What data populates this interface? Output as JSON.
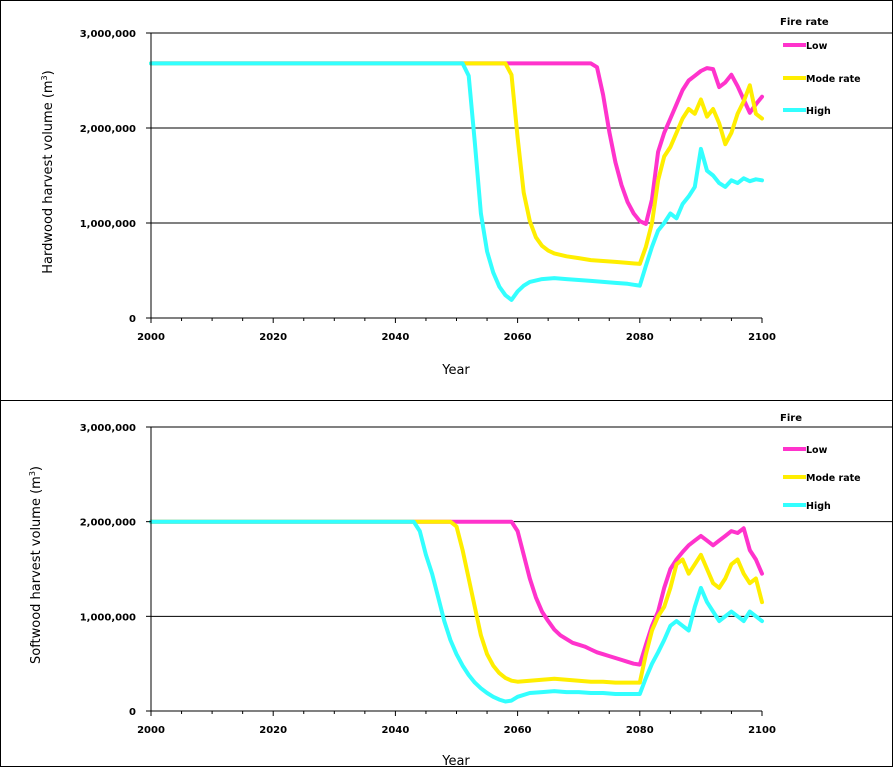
{
  "chart_data": [
    {
      "type": "line",
      "xlabel": "Year",
      "ylabel": "Hardwood harvest volume (m³)",
      "xlim": [
        2000,
        2100
      ],
      "ylim": [
        0,
        3000000
      ],
      "x_ticks": [
        "2000",
        "2020",
        "2040",
        "2060",
        "2080",
        "2100"
      ],
      "y_ticks": [
        "0",
        "1,000,000",
        "2,000,000",
        "3,000,000"
      ],
      "grid": "horizontal",
      "legend_title": "Fire rate",
      "legend_position": "top-right",
      "series": [
        {
          "name": "Low",
          "color": "#ff33cc",
          "points": [
            [
              2000,
              2680000
            ],
            [
              2072,
              2680000
            ],
            [
              2073,
              2640000
            ],
            [
              2074,
              2350000
            ],
            [
              2075,
              1960000
            ],
            [
              2076,
              1640000
            ],
            [
              2077,
              1400000
            ],
            [
              2078,
              1220000
            ],
            [
              2079,
              1100000
            ],
            [
              2080,
              1020000
            ],
            [
              2081,
              990000
            ],
            [
              2082,
              1250000
            ],
            [
              2083,
              1750000
            ],
            [
              2084,
              1950000
            ],
            [
              2085,
              2100000
            ],
            [
              2086,
              2250000
            ],
            [
              2087,
              2400000
            ],
            [
              2088,
              2500000
            ],
            [
              2089,
              2550000
            ],
            [
              2090,
              2600000
            ],
            [
              2091,
              2630000
            ],
            [
              2092,
              2620000
            ],
            [
              2093,
              2430000
            ],
            [
              2094,
              2480000
            ],
            [
              2095,
              2560000
            ],
            [
              2096,
              2440000
            ],
            [
              2097,
              2300000
            ],
            [
              2098,
              2160000
            ],
            [
              2099,
              2250000
            ],
            [
              2100,
              2330000
            ]
          ]
        },
        {
          "name": "Moderate",
          "color": "#ffee00",
          "points": [
            [
              2000,
              2680000
            ],
            [
              2058,
              2680000
            ],
            [
              2059,
              2560000
            ],
            [
              2060,
              1900000
            ],
            [
              2061,
              1320000
            ],
            [
              2062,
              1020000
            ],
            [
              2063,
              850000
            ],
            [
              2064,
              760000
            ],
            [
              2065,
              710000
            ],
            [
              2066,
              680000
            ],
            [
              2068,
              650000
            ],
            [
              2070,
              630000
            ],
            [
              2072,
              610000
            ],
            [
              2074,
              600000
            ],
            [
              2076,
              590000
            ],
            [
              2078,
              580000
            ],
            [
              2080,
              570000
            ],
            [
              2081,
              750000
            ],
            [
              2082,
              1000000
            ],
            [
              2083,
              1450000
            ],
            [
              2084,
              1700000
            ],
            [
              2085,
              1800000
            ],
            [
              2086,
              1950000
            ],
            [
              2087,
              2100000
            ],
            [
              2088,
              2200000
            ],
            [
              2089,
              2150000
            ],
            [
              2090,
              2300000
            ],
            [
              2091,
              2120000
            ],
            [
              2092,
              2200000
            ],
            [
              2093,
              2050000
            ],
            [
              2094,
              1830000
            ],
            [
              2095,
              1950000
            ],
            [
              2096,
              2150000
            ],
            [
              2097,
              2280000
            ],
            [
              2098,
              2450000
            ],
            [
              2099,
              2150000
            ],
            [
              2100,
              2100000
            ]
          ]
        },
        {
          "name": "High",
          "color": "#33ffff",
          "points": [
            [
              2000,
              2680000
            ],
            [
              2051,
              2680000
            ],
            [
              2052,
              2550000
            ],
            [
              2053,
              1850000
            ],
            [
              2054,
              1100000
            ],
            [
              2055,
              700000
            ],
            [
              2056,
              480000
            ],
            [
              2057,
              330000
            ],
            [
              2058,
              240000
            ],
            [
              2059,
              190000
            ],
            [
              2060,
              280000
            ],
            [
              2061,
              340000
            ],
            [
              2062,
              380000
            ],
            [
              2064,
              410000
            ],
            [
              2066,
              420000
            ],
            [
              2068,
              410000
            ],
            [
              2070,
              400000
            ],
            [
              2072,
              390000
            ],
            [
              2074,
              380000
            ],
            [
              2076,
              370000
            ],
            [
              2078,
              360000
            ],
            [
              2080,
              340000
            ],
            [
              2081,
              550000
            ],
            [
              2082,
              750000
            ],
            [
              2083,
              920000
            ],
            [
              2084,
              1000000
            ],
            [
              2085,
              1100000
            ],
            [
              2086,
              1050000
            ],
            [
              2087,
              1200000
            ],
            [
              2088,
              1280000
            ],
            [
              2089,
              1380000
            ],
            [
              2090,
              1780000
            ],
            [
              2091,
              1550000
            ],
            [
              2092,
              1500000
            ],
            [
              2093,
              1420000
            ],
            [
              2094,
              1380000
            ],
            [
              2095,
              1450000
            ],
            [
              2096,
              1420000
            ],
            [
              2097,
              1470000
            ],
            [
              2098,
              1440000
            ],
            [
              2099,
              1460000
            ],
            [
              2100,
              1450000
            ]
          ]
        }
      ]
    },
    {
      "type": "line",
      "xlabel": "Year",
      "ylabel": "Softwood harvest volume (m³)",
      "xlim": [
        2000,
        2100
      ],
      "ylim": [
        0,
        3000000
      ],
      "x_ticks": [
        "2000",
        "2020",
        "2040",
        "2060",
        "2080",
        "2100"
      ],
      "y_ticks": [
        "0",
        "1,000,000",
        "2,000,000",
        "3,000,000"
      ],
      "grid": "horizontal",
      "legend_title": "Fire",
      "legend_position": "top-right",
      "series": [
        {
          "name": "Low",
          "color": "#ff33cc",
          "points": [
            [
              2000,
              2000000
            ],
            [
              2059,
              2000000
            ],
            [
              2060,
              1900000
            ],
            [
              2061,
              1650000
            ],
            [
              2062,
              1400000
            ],
            [
              2063,
              1200000
            ],
            [
              2064,
              1050000
            ],
            [
              2065,
              950000
            ],
            [
              2066,
              860000
            ],
            [
              2067,
              800000
            ],
            [
              2068,
              760000
            ],
            [
              2069,
              720000
            ],
            [
              2070,
              700000
            ],
            [
              2071,
              680000
            ],
            [
              2072,
              650000
            ],
            [
              2073,
              620000
            ],
            [
              2074,
              600000
            ],
            [
              2075,
              580000
            ],
            [
              2076,
              560000
            ],
            [
              2077,
              540000
            ],
            [
              2078,
              520000
            ],
            [
              2079,
              500000
            ],
            [
              2080,
              490000
            ],
            [
              2081,
              700000
            ],
            [
              2082,
              900000
            ],
            [
              2083,
              1050000
            ],
            [
              2084,
              1300000
            ],
            [
              2085,
              1500000
            ],
            [
              2086,
              1600000
            ],
            [
              2087,
              1680000
            ],
            [
              2088,
              1750000
            ],
            [
              2089,
              1800000
            ],
            [
              2090,
              1850000
            ],
            [
              2091,
              1800000
            ],
            [
              2092,
              1750000
            ],
            [
              2093,
              1800000
            ],
            [
              2094,
              1850000
            ],
            [
              2095,
              1900000
            ],
            [
              2096,
              1880000
            ],
            [
              2097,
              1930000
            ],
            [
              2098,
              1700000
            ],
            [
              2099,
              1600000
            ],
            [
              2100,
              1450000
            ]
          ]
        },
        {
          "name": "Moderate",
          "color": "#ffee00",
          "points": [
            [
              2000,
              2000000
            ],
            [
              2049,
              2000000
            ],
            [
              2050,
              1950000
            ],
            [
              2051,
              1700000
            ],
            [
              2052,
              1400000
            ],
            [
              2053,
              1100000
            ],
            [
              2054,
              800000
            ],
            [
              2055,
              600000
            ],
            [
              2056,
              480000
            ],
            [
              2057,
              400000
            ],
            [
              2058,
              350000
            ],
            [
              2059,
              320000
            ],
            [
              2060,
              310000
            ],
            [
              2062,
              320000
            ],
            [
              2064,
              330000
            ],
            [
              2066,
              340000
            ],
            [
              2068,
              330000
            ],
            [
              2070,
              320000
            ],
            [
              2072,
              310000
            ],
            [
              2074,
              310000
            ],
            [
              2076,
              300000
            ],
            [
              2078,
              300000
            ],
            [
              2080,
              300000
            ],
            [
              2081,
              600000
            ],
            [
              2082,
              850000
            ],
            [
              2083,
              1000000
            ],
            [
              2084,
              1100000
            ],
            [
              2085,
              1300000
            ],
            [
              2086,
              1550000
            ],
            [
              2087,
              1600000
            ],
            [
              2088,
              1450000
            ],
            [
              2089,
              1550000
            ],
            [
              2090,
              1650000
            ],
            [
              2091,
              1500000
            ],
            [
              2092,
              1350000
            ],
            [
              2093,
              1300000
            ],
            [
              2094,
              1400000
            ],
            [
              2095,
              1550000
            ],
            [
              2096,
              1600000
            ],
            [
              2097,
              1450000
            ],
            [
              2098,
              1350000
            ],
            [
              2099,
              1400000
            ],
            [
              2100,
              1150000
            ]
          ]
        },
        {
          "name": "High",
          "color": "#33ffff",
          "points": [
            [
              2000,
              2000000
            ],
            [
              2043,
              2000000
            ],
            [
              2044,
              1900000
            ],
            [
              2045,
              1650000
            ],
            [
              2046,
              1450000
            ],
            [
              2047,
              1200000
            ],
            [
              2048,
              950000
            ],
            [
              2049,
              750000
            ],
            [
              2050,
              600000
            ],
            [
              2051,
              480000
            ],
            [
              2052,
              380000
            ],
            [
              2053,
              300000
            ],
            [
              2054,
              240000
            ],
            [
              2055,
              190000
            ],
            [
              2056,
              150000
            ],
            [
              2057,
              120000
            ],
            [
              2058,
              100000
            ],
            [
              2059,
              110000
            ],
            [
              2060,
              150000
            ],
            [
              2062,
              190000
            ],
            [
              2064,
              200000
            ],
            [
              2066,
              210000
            ],
            [
              2068,
              200000
            ],
            [
              2070,
              200000
            ],
            [
              2072,
              190000
            ],
            [
              2074,
              190000
            ],
            [
              2076,
              180000
            ],
            [
              2078,
              180000
            ],
            [
              2080,
              180000
            ],
            [
              2081,
              350000
            ],
            [
              2082,
              500000
            ],
            [
              2083,
              620000
            ],
            [
              2084,
              750000
            ],
            [
              2085,
              900000
            ],
            [
              2086,
              950000
            ],
            [
              2087,
              900000
            ],
            [
              2088,
              850000
            ],
            [
              2089,
              1100000
            ],
            [
              2090,
              1300000
            ],
            [
              2091,
              1150000
            ],
            [
              2092,
              1050000
            ],
            [
              2093,
              950000
            ],
            [
              2094,
              1000000
            ],
            [
              2095,
              1050000
            ],
            [
              2096,
              1000000
            ],
            [
              2097,
              950000
            ],
            [
              2098,
              1050000
            ],
            [
              2099,
              1000000
            ],
            [
              2100,
              950000
            ]
          ]
        }
      ]
    }
  ],
  "legend_labels": {
    "top": {
      "title": "Fire rate",
      "items": [
        "Low",
        "Mode rate",
        "High"
      ]
    },
    "bottom": {
      "title": "Fire",
      "items": [
        "Low",
        "Mode rate",
        "High"
      ]
    }
  },
  "y_axis_titles": {
    "top": "Hardwood harvest volume (m",
    "bottom": "Softwood harvest volume (m",
    "superscript": "3",
    "close": ")"
  }
}
